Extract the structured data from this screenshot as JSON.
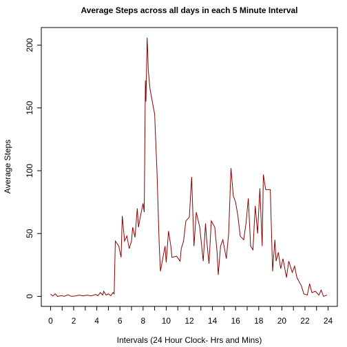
{
  "chart_data": {
    "type": "line",
    "title": "Average Steps across all days in each 5 Minute Interval",
    "x_label": "Intervals (24 Hour Clock- Hrs and Mins)",
    "y_label": "Average Steps",
    "color": "#8b0000",
    "x": [
      0,
      0.2,
      0.4,
      0.6,
      0.9,
      1.2,
      1.5,
      1.8,
      2.1,
      2.5,
      2.8,
      3.2,
      3.5,
      3.9,
      4.1,
      4.3,
      4.5,
      4.6,
      4.8,
      5.0,
      5.2,
      5.4,
      5.5,
      5.6,
      5.9,
      6.1,
      6.2,
      6.4,
      6.6,
      6.8,
      7.0,
      7.1,
      7.3,
      7.5,
      7.6,
      7.8,
      8.0,
      8.1,
      8.2,
      8.25,
      8.35,
      8.4,
      8.45,
      8.6,
      8.9,
      9.0,
      9.2,
      9.4,
      9.5,
      9.7,
      9.9,
      10.0,
      10.2,
      10.4,
      10.5,
      10.9,
      11.2,
      11.3,
      11.5,
      11.7,
      12.0,
      12.2,
      12.4,
      12.6,
      12.9,
      13.2,
      13.4,
      13.5,
      13.7,
      13.9,
      14.2,
      14.4,
      14.5,
      14.7,
      14.9,
      15.2,
      15.4,
      15.6,
      15.8,
      16.0,
      16.2,
      16.4,
      16.7,
      16.9,
      17.1,
      17.3,
      17.5,
      17.7,
      17.9,
      18.1,
      18.3,
      18.4,
      18.6,
      19.0,
      19.2,
      19.4,
      19.5,
      19.7,
      19.9,
      20.1,
      20.4,
      20.6,
      20.9,
      21.1,
      21.3,
      21.7,
      21.9,
      22.2,
      22.4,
      22.6,
      22.9,
      23.2,
      23.4,
      23.6,
      23.9
    ],
    "values": [
      1.7,
      0.3,
      2,
      0,
      0.5,
      0.1,
      1.2,
      0,
      0.2,
      1,
      0.4,
      1,
      0.3,
      1.5,
      0.5,
      3,
      1,
      4,
      1,
      2,
      0.5,
      3,
      2,
      44,
      40,
      31,
      64,
      44,
      48,
      38,
      44,
      55,
      47,
      70,
      55,
      65,
      74,
      67,
      172,
      155,
      206,
      195,
      180,
      165,
      150,
      145,
      100,
      40,
      20,
      30,
      40,
      27,
      52,
      40,
      31,
      32,
      28,
      38,
      44,
      60,
      63,
      95,
      40,
      67,
      55,
      28,
      58,
      45,
      26,
      60,
      55,
      35,
      17,
      40,
      45,
      30,
      50,
      102,
      80,
      75,
      64,
      48,
      45,
      58,
      78,
      40,
      37,
      72,
      50,
      86,
      40,
      97,
      85,
      85,
      20,
      45,
      28,
      35,
      22,
      30,
      15,
      28,
      19,
      24,
      15,
      8,
      2,
      1,
      10,
      3,
      4,
      1,
      5,
      0,
      1
    ],
    "xlim": [
      -0.8,
      24.8
    ],
    "ylim": [
      -8,
      214
    ],
    "xticks": [
      0,
      2,
      4,
      6,
      8,
      10,
      12,
      14,
      16,
      18,
      20,
      22,
      24
    ],
    "xminorticks": [
      1,
      3,
      5,
      7,
      9,
      11,
      13,
      15,
      17,
      19,
      21,
      23
    ],
    "yticks": [
      0,
      50,
      100,
      150,
      200
    ]
  }
}
